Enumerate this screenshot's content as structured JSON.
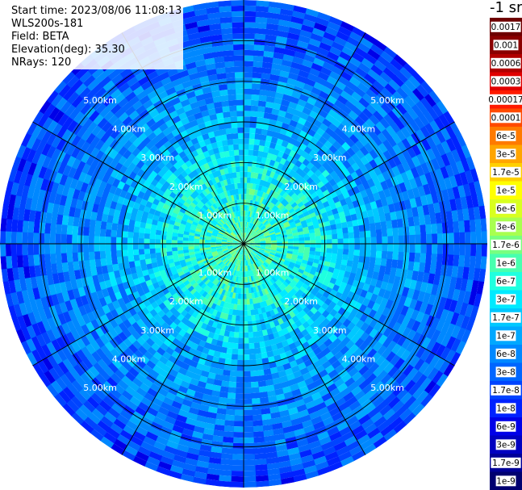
{
  "info": {
    "start_time": "Start time: 2023/08/06 11:08:13",
    "device": "WLS200s-181",
    "field": "Field: BETA",
    "elevation": "Elevation(deg): 35.30",
    "nrays": "NRays: 120"
  },
  "colorbar": {
    "unit": "-1 sr",
    "entries": [
      {
        "label": "0.0017",
        "color": "#6e0000"
      },
      {
        "label": "0.001",
        "color": "#8a0000"
      },
      {
        "label": "0.0006",
        "color": "#b00000"
      },
      {
        "label": "0.0003",
        "color": "#e00000"
      },
      {
        "label": "0.00017",
        "color": "#ff1a00"
      },
      {
        "label": "0.0001",
        "color": "#ff4a00"
      },
      {
        "label": "6e-5",
        "color": "#ff7a00"
      },
      {
        "label": "3e-5",
        "color": "#ffa500"
      },
      {
        "label": "1.7e-5",
        "color": "#ffd000"
      },
      {
        "label": "1e-5",
        "color": "#ffff00"
      },
      {
        "label": "6e-6",
        "color": "#d8ff1f"
      },
      {
        "label": "3e-6",
        "color": "#a8ff4f"
      },
      {
        "label": "1.7e-6",
        "color": "#78ff7f"
      },
      {
        "label": "1e-6",
        "color": "#48ffaf"
      },
      {
        "label": "6e-7",
        "color": "#1fffdf"
      },
      {
        "label": "3e-7",
        "color": "#00eaff"
      },
      {
        "label": "1.7e-7",
        "color": "#00c8ff"
      },
      {
        "label": "1e-7",
        "color": "#00a8ff"
      },
      {
        "label": "6e-8",
        "color": "#0088ff"
      },
      {
        "label": "3e-8",
        "color": "#0066ff"
      },
      {
        "label": "1.7e-8",
        "color": "#0044ff"
      },
      {
        "label": "1e-8",
        "color": "#0022ff"
      },
      {
        "label": "6e-9",
        "color": "#0000e8"
      },
      {
        "label": "3e-9",
        "color": "#0000c0"
      },
      {
        "label": "1.7e-9",
        "color": "#000098"
      },
      {
        "label": "1e-9",
        "color": "#000070"
      }
    ]
  },
  "chart_data": {
    "type": "heatmap",
    "projection": "polar-ppi",
    "field": "BETA",
    "elevation_deg": 35.3,
    "n_rays": 120,
    "range_rings_km": [
      1,
      2,
      3,
      4,
      5
    ],
    "ring_labels": [
      "1.00km",
      "2.00km",
      "3.00km",
      "4.00km",
      "5.00km"
    ],
    "max_range_km": 6,
    "azimuth_lines_deg": [
      0,
      30,
      60,
      90,
      120,
      150,
      180,
      210,
      240,
      270,
      300,
      330
    ],
    "color_scale": "log",
    "value_range": [
      1e-09,
      0.0017
    ],
    "radial_profile": {
      "range_km": [
        0,
        1,
        2,
        3,
        4,
        5,
        6
      ],
      "typical_value": [
        1e-06,
        6e-07,
        3e-07,
        1e-07,
        6e-08,
        3e-08,
        1.7e-08
      ]
    }
  }
}
